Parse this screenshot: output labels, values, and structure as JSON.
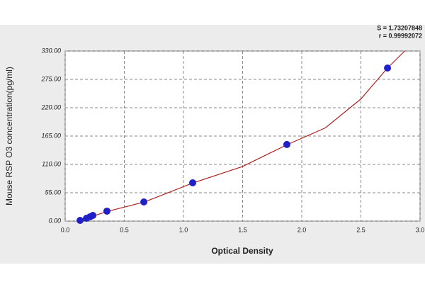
{
  "chart_data": {
    "type": "scatter",
    "annotations": [
      "S = 1.73207848",
      "r = 0.99992072"
    ],
    "x_label": "Optical Density",
    "y_label": "Mouse RSP O3 concentration(pg/ml)",
    "x": [
      0.126,
      0.18,
      0.21,
      0.234,
      0.353,
      0.665,
      1.078,
      1.874,
      2.725
    ],
    "values": [
      1.4,
      5.5,
      8.3,
      11,
      19.3,
      37.1,
      74.3,
      148.6,
      297
    ],
    "color": "#2020c8",
    "curve": {
      "color": "#b02020",
      "x": [
        0.1,
        0.2,
        0.36,
        0.67,
        1.08,
        1.5,
        1.874,
        2.2,
        2.5,
        2.725,
        2.87
      ],
      "values": [
        0,
        7,
        19,
        37,
        74,
        106,
        148,
        181,
        237,
        297,
        330
      ]
    },
    "xlim": [
      0,
      3
    ],
    "ylim": [
      0,
      330
    ],
    "xticks": [
      {
        "value": 0,
        "label": "0.0"
      },
      0.5,
      {
        "value": 1,
        "label": "1.0"
      },
      1.5,
      {
        "value": 2,
        "label": "2.0"
      },
      2.5,
      {
        "value": 3,
        "label": "3.0"
      }
    ],
    "yticks": [
      {
        "value": 0,
        "label": "0.00"
      },
      {
        "value": 55,
        "label": "55.00"
      },
      {
        "value": 110,
        "label": "110.00"
      },
      {
        "value": 165,
        "label": "165.00"
      },
      {
        "value": 220,
        "label": "220.00"
      },
      {
        "value": 275,
        "label": "275.00"
      },
      {
        "value": 330,
        "label": "330.00"
      }
    ],
    "grid": true
  }
}
